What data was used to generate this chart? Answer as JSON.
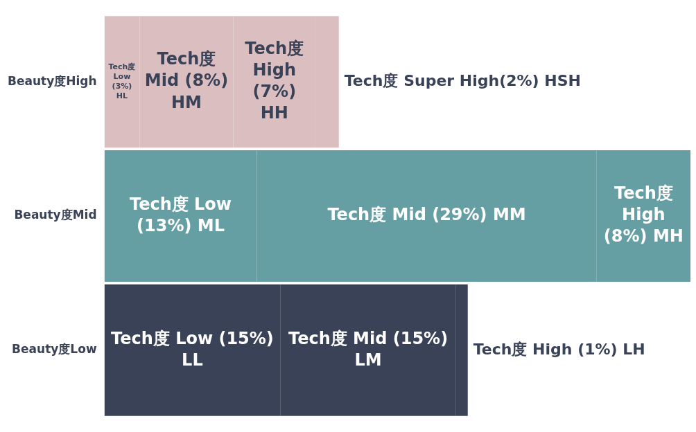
{
  "chart_data": {
    "type": "bar",
    "orientation": "horizontal",
    "stacked": true,
    "categories": [
      "Beauty度High",
      "Beauty度Mid",
      "Beauty度Low"
    ],
    "series": [
      {
        "colors": [
          "#dbbfc0",
          "#669fa3",
          "#3a4257"
        ],
        "values": [
          3,
          13,
          15
        ],
        "value_labels": [
          "Tech度 Low (3%) HL",
          "Tech度 Low (13%) ML",
          "Tech度 Low (15%) LL"
        ]
      },
      {
        "colors": [
          "#dbbfc0",
          "#669fa3",
          "#3a4257"
        ],
        "values": [
          8,
          29,
          15
        ],
        "value_labels": [
          "Tech度 Mid (8%) HM",
          "Tech度 Mid (29%) MM",
          "Tech度 Mid (15%) LM"
        ]
      },
      {
        "colors": [
          "#dbbfc0",
          "#669fa3",
          "#3a4257"
        ],
        "values": [
          7,
          8,
          1
        ],
        "value_labels": [
          "Tech度 High (7%) HH",
          "Tech度 High (8%) MH",
          "Tech度 High (1%) LH"
        ]
      },
      {
        "colors": [
          "#dbbfc0",
          "#669fa3",
          "#3a4257"
        ],
        "values": [
          2,
          null,
          null
        ],
        "value_labels": [
          "Tech度 Super High(2%) HSH",
          null,
          null
        ]
      }
    ]
  }
}
